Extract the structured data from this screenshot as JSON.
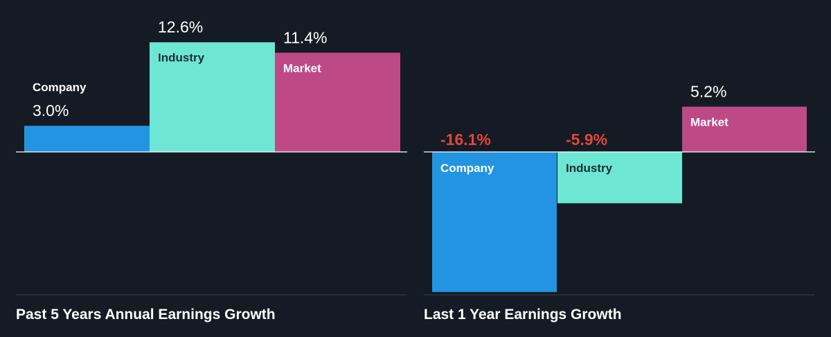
{
  "colors": {
    "background": "#151b24",
    "company": "#2394e2",
    "industry": "#6de7d4",
    "market": "#bd4a87",
    "positive_value": "#ffffff",
    "negative_value": "#e2453c",
    "baseline": "#ffffff",
    "gridline": "#3a414b"
  },
  "chart_data": [
    {
      "type": "bar",
      "title": "Past 5 Years Annual Earnings Growth",
      "categories": [
        "Company",
        "Industry",
        "Market"
      ],
      "values": [
        3.0,
        12.6,
        11.4
      ],
      "value_labels": [
        "3.0%",
        "12.6%",
        "11.4%"
      ],
      "unit": "%",
      "grid": false
    },
    {
      "type": "bar",
      "title": "Last 1 Year Earnings Growth",
      "categories": [
        "Company",
        "Industry",
        "Market"
      ],
      "values": [
        -16.1,
        -5.9,
        5.2
      ],
      "value_labels": [
        "-16.1%",
        "-5.9%",
        "5.2%"
      ],
      "unit": "%",
      "grid": false
    }
  ]
}
